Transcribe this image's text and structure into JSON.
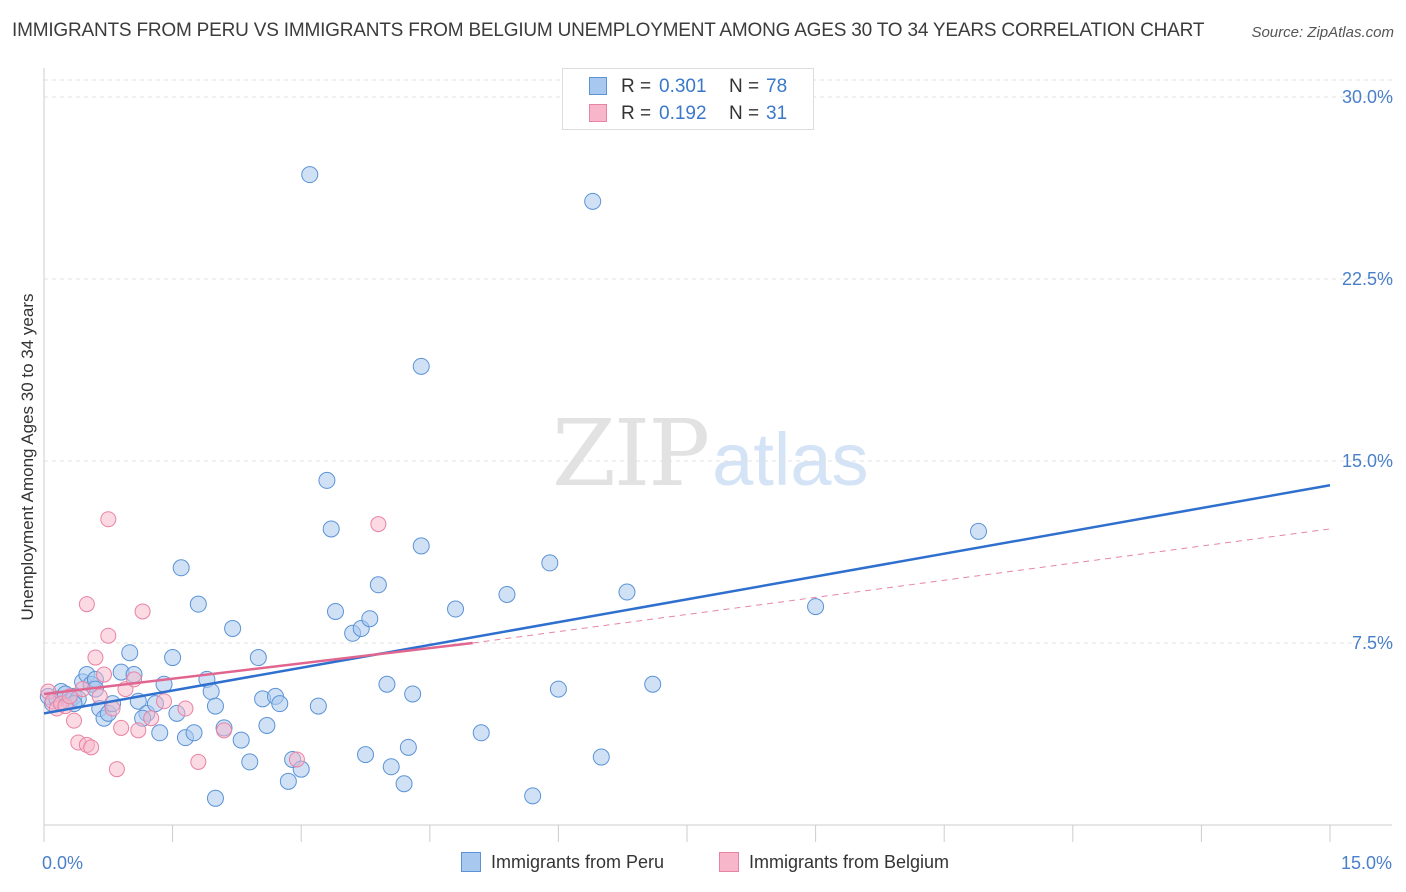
{
  "title": "IMMIGRANTS FROM PERU VS IMMIGRANTS FROM BELGIUM UNEMPLOYMENT AMONG AGES 30 TO 34 YEARS CORRELATION CHART",
  "source": "Source: ZipAtlas.com",
  "watermark": {
    "zip": "ZIP",
    "atlas": "atlas"
  },
  "legend": {
    "peru": {
      "r_label": "R =",
      "r_value": "0.301",
      "n_label": "N =",
      "n_value": "78"
    },
    "belgium": {
      "r_label": "R =",
      "r_value": "0.192",
      "n_label": "N =",
      "n_value": "31"
    }
  },
  "colors": {
    "peru_fill": "#a9c8ef",
    "peru_stroke": "#5b93d6",
    "peru_line": "#2f6fce",
    "belgium_fill": "#f7b6c9",
    "belgium_stroke": "#e983a3",
    "belgium_line": "#e06690",
    "tick_color": "#4a7fc9",
    "grid": "#e0e0e0"
  },
  "chart_data": {
    "type": "scatter",
    "title": "IMMIGRANTS FROM PERU VS IMMIGRANTS FROM BELGIUM UNEMPLOYMENT AMONG AGES 30 TO 34 YEARS CORRELATION CHART",
    "xlabel": "",
    "ylabel": "Unemployment Among Ages 30 to 34 years",
    "xlim": [
      0,
      15
    ],
    "ylim": [
      0,
      30
    ],
    "x_tick_labels": [
      {
        "value": 0,
        "label": "0.0%"
      },
      {
        "value": 15,
        "label": "15.0%"
      }
    ],
    "y_tick_labels": [
      {
        "value": 7.5,
        "label": "7.5%"
      },
      {
        "value": 15,
        "label": "15.0%"
      },
      {
        "value": 22.5,
        "label": "22.5%"
      },
      {
        "value": 30,
        "label": "30.0%"
      }
    ],
    "series": [
      {
        "name": "Immigrants from Peru",
        "color": "#a9c8ef",
        "trend": {
          "x": [
            0,
            15
          ],
          "y": [
            4.6,
            14.0
          ],
          "style": "solid"
        },
        "points": [
          [
            0.05,
            5.3
          ],
          [
            0.1,
            5.0
          ],
          [
            0.15,
            5.2
          ],
          [
            0.2,
            5.5
          ],
          [
            0.25,
            5.4
          ],
          [
            0.3,
            5.1
          ],
          [
            0.35,
            5.3
          ],
          [
            0.4,
            5.2
          ],
          [
            0.45,
            5.9
          ],
          [
            0.5,
            6.2
          ],
          [
            0.55,
            5.8
          ],
          [
            0.6,
            6.0
          ],
          [
            0.65,
            4.8
          ],
          [
            0.7,
            4.4
          ],
          [
            0.75,
            4.6
          ],
          [
            0.8,
            5.0
          ],
          [
            0.9,
            6.3
          ],
          [
            1.0,
            7.1
          ],
          [
            1.05,
            6.2
          ],
          [
            1.1,
            5.1
          ],
          [
            1.2,
            4.6
          ],
          [
            1.3,
            5.0
          ],
          [
            1.35,
            3.8
          ],
          [
            1.4,
            5.8
          ],
          [
            1.5,
            6.9
          ],
          [
            1.55,
            4.6
          ],
          [
            1.65,
            3.6
          ],
          [
            1.75,
            3.8
          ],
          [
            1.6,
            10.6
          ],
          [
            1.8,
            9.1
          ],
          [
            1.9,
            6.0
          ],
          [
            1.95,
            5.5
          ],
          [
            2.0,
            1.1
          ],
          [
            2.1,
            4.0
          ],
          [
            2.2,
            8.1
          ],
          [
            2.3,
            3.5
          ],
          [
            2.4,
            2.6
          ],
          [
            2.5,
            6.9
          ],
          [
            2.55,
            5.2
          ],
          [
            2.6,
            4.1
          ],
          [
            2.7,
            5.3
          ],
          [
            2.75,
            5.0
          ],
          [
            2.85,
            1.8
          ],
          [
            2.9,
            2.7
          ],
          [
            3.0,
            2.3
          ],
          [
            3.1,
            26.8
          ],
          [
            3.2,
            4.9
          ],
          [
            3.3,
            14.2
          ],
          [
            3.35,
            12.2
          ],
          [
            3.4,
            8.8
          ],
          [
            3.6,
            7.9
          ],
          [
            3.7,
            8.1
          ],
          [
            3.75,
            2.9
          ],
          [
            3.9,
            9.9
          ],
          [
            4.0,
            5.8
          ],
          [
            4.05,
            2.4
          ],
          [
            4.2,
            1.7
          ],
          [
            4.25,
            3.2
          ],
          [
            4.3,
            5.4
          ],
          [
            4.4,
            11.5
          ],
          [
            4.4,
            18.9
          ],
          [
            4.8,
            8.9
          ],
          [
            5.1,
            3.8
          ],
          [
            5.4,
            9.5
          ],
          [
            5.7,
            1.2
          ],
          [
            5.9,
            10.8
          ],
          [
            6.0,
            5.6
          ],
          [
            6.4,
            25.7
          ],
          [
            6.5,
            2.8
          ],
          [
            6.8,
            9.6
          ],
          [
            7.1,
            5.8
          ],
          [
            9.0,
            9.0
          ],
          [
            10.9,
            12.1
          ],
          [
            0.6,
            5.6
          ],
          [
            1.15,
            4.4
          ],
          [
            2.0,
            4.9
          ],
          [
            3.8,
            8.5
          ],
          [
            0.35,
            5.0
          ]
        ]
      },
      {
        "name": "Immigrants from Belgium",
        "color": "#f7b6c9",
        "trend": {
          "x": [
            0,
            5.0
          ],
          "y": [
            5.4,
            7.5
          ],
          "style": "solid"
        },
        "trend_extension": {
          "x": [
            5.0,
            15
          ],
          "y": [
            7.5,
            12.2
          ],
          "style": "dashed"
        },
        "points": [
          [
            0.05,
            5.5
          ],
          [
            0.1,
            5.1
          ],
          [
            0.15,
            4.8
          ],
          [
            0.2,
            5.0
          ],
          [
            0.25,
            4.9
          ],
          [
            0.3,
            5.3
          ],
          [
            0.35,
            4.3
          ],
          [
            0.4,
            3.4
          ],
          [
            0.45,
            5.6
          ],
          [
            0.5,
            3.3
          ],
          [
            0.55,
            3.2
          ],
          [
            0.6,
            6.9
          ],
          [
            0.65,
            5.3
          ],
          [
            0.7,
            6.2
          ],
          [
            0.75,
            7.8
          ],
          [
            0.8,
            4.8
          ],
          [
            0.85,
            2.3
          ],
          [
            0.9,
            4.0
          ],
          [
            0.95,
            5.6
          ],
          [
            1.05,
            6.0
          ],
          [
            1.1,
            3.9
          ],
          [
            1.15,
            8.8
          ],
          [
            1.25,
            4.4
          ],
          [
            1.4,
            5.1
          ],
          [
            1.65,
            4.8
          ],
          [
            1.8,
            2.6
          ],
          [
            2.1,
            3.9
          ],
          [
            2.95,
            2.7
          ],
          [
            3.9,
            12.4
          ],
          [
            0.75,
            12.6
          ],
          [
            0.5,
            9.1
          ]
        ]
      }
    ]
  },
  "bottom_legend": {
    "peru_label": "Immigrants from Peru",
    "belgium_label": "Immigrants from Belgium"
  }
}
